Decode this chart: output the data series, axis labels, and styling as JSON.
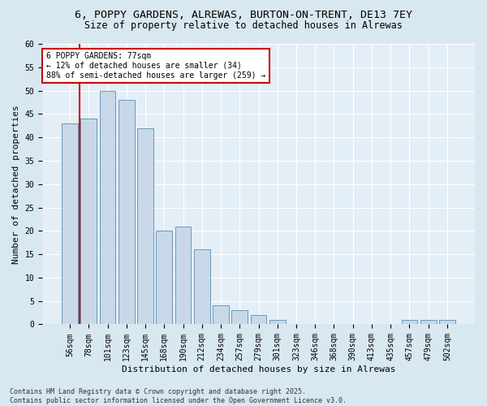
{
  "title1": "6, POPPY GARDENS, ALREWAS, BURTON-ON-TRENT, DE13 7EY",
  "title2": "Size of property relative to detached houses in Alrewas",
  "xlabel": "Distribution of detached houses by size in Alrewas",
  "ylabel": "Number of detached properties",
  "categories": [
    "56sqm",
    "78sqm",
    "101sqm",
    "123sqm",
    "145sqm",
    "168sqm",
    "190sqm",
    "212sqm",
    "234sqm",
    "257sqm",
    "279sqm",
    "301sqm",
    "323sqm",
    "346sqm",
    "368sqm",
    "390sqm",
    "413sqm",
    "435sqm",
    "457sqm",
    "479sqm",
    "502sqm"
  ],
  "values": [
    43,
    44,
    50,
    48,
    42,
    20,
    21,
    16,
    4,
    3,
    2,
    1,
    0,
    0,
    0,
    0,
    0,
    0,
    1,
    1,
    1
  ],
  "bar_color": "#c8d8e8",
  "bar_edge_color": "#6699bb",
  "reference_line_color": "#cc0000",
  "annotation_text": "6 POPPY GARDENS: 77sqm\n← 12% of detached houses are smaller (34)\n88% of semi-detached houses are larger (259) →",
  "annotation_box_color": "#cc0000",
  "ylim": [
    0,
    60
  ],
  "yticks": [
    0,
    5,
    10,
    15,
    20,
    25,
    30,
    35,
    40,
    45,
    50,
    55,
    60
  ],
  "bg_color": "#d8e8f0",
  "plot_bg_color": "#e4eef6",
  "footer": "Contains HM Land Registry data © Crown copyright and database right 2025.\nContains public sector information licensed under the Open Government Licence v3.0.",
  "title_fontsize": 9.5,
  "subtitle_fontsize": 8.5,
  "axis_label_fontsize": 8,
  "tick_fontsize": 7,
  "annotation_fontsize": 7,
  "footer_fontsize": 6
}
